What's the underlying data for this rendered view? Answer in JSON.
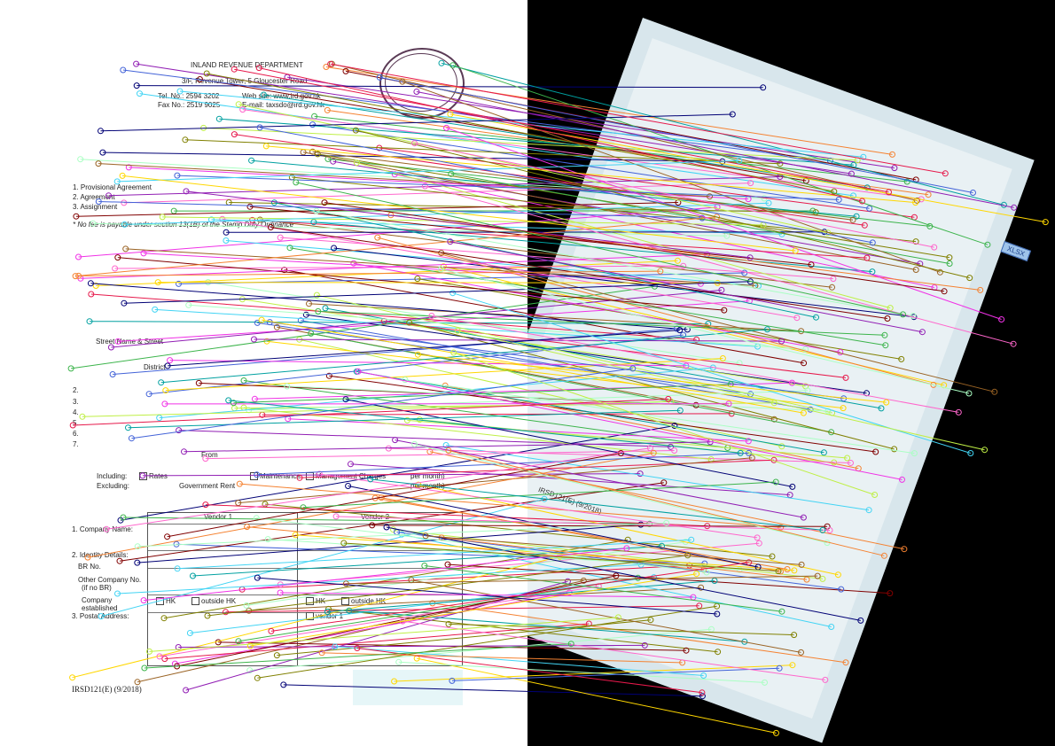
{
  "left_document": {
    "department": "INLAND REVENUE DEPARTMENT",
    "address": "3/F, Revenue Tower, 5 Gloucester Road",
    "tel_label": "Tel. No.: 2594 3202",
    "web_label": "Web site: www.ird.gov.hk",
    "fax_label": "Fax No.: 2519 9025",
    "email_label": "E-mail: taxsdo@ird.gov.hk",
    "items": [
      "1. Provisional Agreement",
      "2. Agreement",
      "3. Assignment"
    ],
    "fee_note": "* No fee is payable under section 13(1B) of the Stamp Duty Ordinance",
    "street_label": "Street Name & Street",
    "district_label": "District",
    "numbered_rows": [
      "2.",
      "3.",
      "4.",
      "5.",
      "6.",
      "7."
    ],
    "hk_label": "HK",
    "from_label": "From",
    "include_label": "Including:",
    "exclude_label": "Excluding:",
    "rates_label": "Rates",
    "government_rent_label": "Government Rent",
    "maintenance_label": "Maintenance",
    "management_charges_label": "Management Charges",
    "per_month_label": "per month)",
    "vendor1_label": "Vendor 1",
    "vendor2_label": "Vendor 2",
    "company_name_label": "1. Company Name:",
    "identity_label": "2. Identity Details:",
    "br_no_label": "BR No.",
    "other_company_label": "Other Company No.",
    "if_no_label": "(if no BR)",
    "company_established_label": "Company",
    "established_label": "established",
    "outside_hk_label": "outside HK",
    "postal_address_label": "3. Postal Address:",
    "same_as_vendor_label": "vendor 1",
    "form_code": "IRSD121(E) (9/2018)"
  },
  "right_photo": {
    "form_code": "IRSD121(E) (9/2018)",
    "badge": "XLSX"
  },
  "match_lines": {
    "count_shown": "many",
    "colors": [
      "#e6194b",
      "#3cb44b",
      "#4363d8",
      "#f58231",
      "#911eb4",
      "#42d4f4",
      "#f032e6",
      "#bfef45",
      "#9a6324",
      "#800000",
      "#aaffc3",
      "#808000",
      "#000075",
      "#ff66cc",
      "#00a0a0",
      "#ffd700"
    ]
  }
}
